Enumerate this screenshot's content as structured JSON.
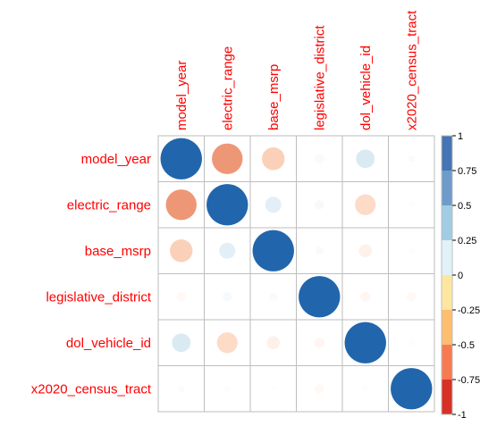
{
  "chart_data": {
    "type": "heatmap",
    "variables": [
      "model_year",
      "electric_range",
      "base_msrp",
      "legislative_district",
      "dol_vehicle_id",
      "x2020_census_tract"
    ],
    "matrix": [
      [
        1.0,
        -0.55,
        -0.3,
        -0.05,
        0.2,
        0.03
      ],
      [
        -0.55,
        1.0,
        0.15,
        0.05,
        -0.25,
        -0.02
      ],
      [
        -0.3,
        0.15,
        1.0,
        0.04,
        -0.1,
        -0.02
      ],
      [
        -0.05,
        0.05,
        0.04,
        1.0,
        -0.06,
        -0.05
      ],
      [
        0.2,
        -0.25,
        -0.1,
        -0.06,
        1.0,
        -0.02
      ],
      [
        0.03,
        -0.02,
        -0.02,
        -0.05,
        -0.02,
        1.0
      ]
    ],
    "legend": {
      "ticks": [
        "1",
        "0.75",
        "0.5",
        "0.25",
        "0",
        "-0.25",
        "-0.5",
        "-0.75",
        "-1"
      ],
      "range": [
        -1,
        1
      ],
      "colors": [
        "#B2182B",
        "#D6604D",
        "#F4A582",
        "#FDDBC7",
        "#FFFFFF",
        "#D1E5F0",
        "#92C5DE",
        "#4393C3",
        "#2166AC"
      ]
    },
    "xlabel": "",
    "ylabel": "",
    "title": "",
    "label_color": "#FF0000",
    "grid_color": "#BEBEBE"
  }
}
